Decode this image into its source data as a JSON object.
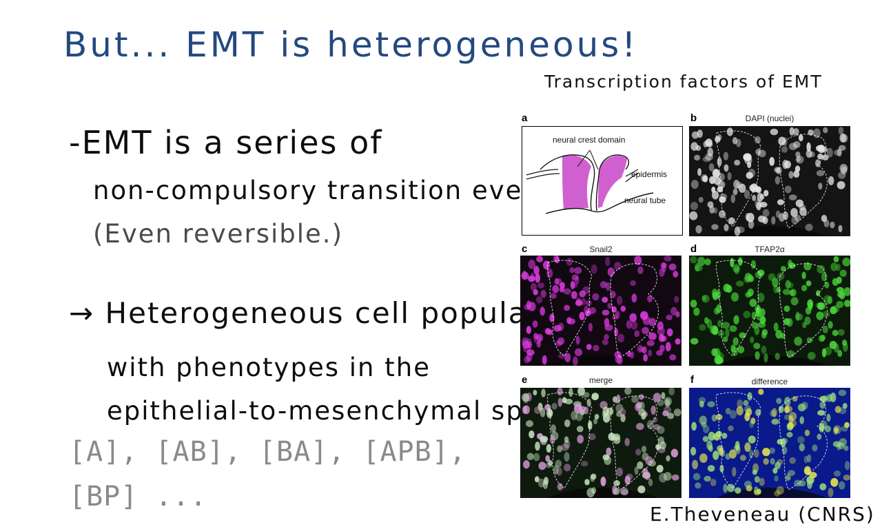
{
  "slide": {
    "title": "But... EMT is heterogeneous!",
    "tf_heading": "Transcription factors of EMT",
    "bullets": [
      {
        "lines": [
          "-EMT is a series of",
          "non-compulsory transition events.",
          "(Even reversible.)"
        ]
      },
      {
        "lines": [
          "→ Heterogeneous cell population",
          "with phenotypes in the",
          "epithelial-to-mesenchymal spectrum."
        ]
      }
    ],
    "notation_lines": [
      "[A], [AB], [BA], [APB],",
      "[BP] ..."
    ],
    "credit": "E.Theveneau (CNRS)"
  },
  "figure": {
    "panels": [
      {
        "letter": "a",
        "caption": "",
        "kind": "diagram"
      },
      {
        "letter": "b",
        "caption": "DAPI (nuclei)",
        "kind": "micrograph",
        "color": "#e6e6e6",
        "bg": "#141414"
      },
      {
        "letter": "c",
        "caption": "Snail2",
        "kind": "micrograph",
        "color": "#e23ce6",
        "bg": "#120812"
      },
      {
        "letter": "d",
        "caption": "TFAP2α",
        "kind": "micrograph",
        "color": "#4ad93a",
        "bg": "#0c1a0b"
      },
      {
        "letter": "e",
        "caption": "merge",
        "kind": "micrograph",
        "color": "#c8e6c0",
        "bg": "#0f1a0e"
      },
      {
        "letter": "f",
        "caption": "difference",
        "kind": "micrograph",
        "color": "#9be07a",
        "bg": "#0a1a8a"
      }
    ],
    "diagram_labels": {
      "neural_crest": "neural crest domain",
      "epidermis": "epidermis",
      "neural_tube": "neural tube"
    },
    "colors": {
      "neural_crest_fill": "#d060d0",
      "title_ink": "#23497f",
      "notation_ink": "#8a8a8a"
    }
  }
}
